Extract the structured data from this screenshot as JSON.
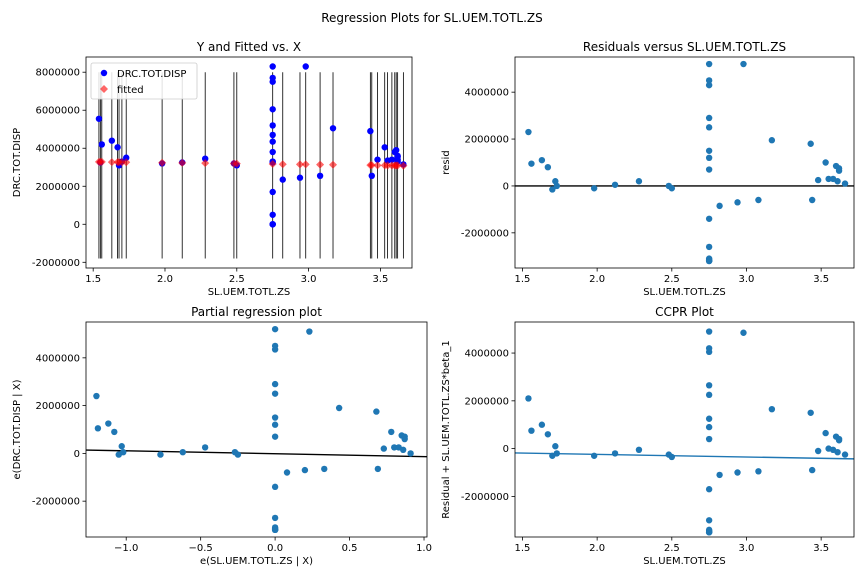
{
  "suptitle": "Regression Plots for SL.UEM.TOTL.ZS",
  "colors": {
    "observed": "#0000ff",
    "fitted": "#ff0000",
    "scatter": "#1f77b4",
    "line_black": "#000000",
    "line_blue": "#1f77b4",
    "errorbar": "#000000"
  },
  "chart_data": [
    {
      "id": "p1",
      "type": "scatter",
      "title": "Y and Fitted vs. X",
      "xlabel": "SL.UEM.TOTL.ZS",
      "ylabel": "DRC.TOT.DISP",
      "xlim": [
        1.45,
        3.72
      ],
      "ylim": [
        -2300000,
        8800000
      ],
      "xticks": [
        1.5,
        2.0,
        2.5,
        3.0,
        3.5
      ],
      "xtick_labels": [
        "1.5",
        "2.0",
        "2.5",
        "3.0",
        "3.5"
      ],
      "yticks": [
        -2000000,
        0,
        2000000,
        4000000,
        6000000,
        8000000
      ],
      "ytick_labels": [
        "-2000000",
        "0",
        "2000000",
        "4000000",
        "6000000",
        "8000000"
      ],
      "legend": {
        "location": "upper-left",
        "entries": [
          "DRC.TOT.DISP",
          "fitted"
        ]
      },
      "series": [
        {
          "name": "DRC.TOT.DISP",
          "marker": "circle",
          "x": [
            1.54,
            1.55,
            1.56,
            1.63,
            1.67,
            1.68,
            1.7,
            1.73,
            1.98,
            2.12,
            2.28,
            2.48,
            2.5,
            2.75,
            2.75,
            2.75,
            2.75,
            2.75,
            2.75,
            2.75,
            2.75,
            2.75,
            2.75,
            2.75,
            2.75,
            2.75,
            2.75,
            2.75,
            2.82,
            2.94,
            2.98,
            3.08,
            3.17,
            3.43,
            3.44,
            3.48,
            3.53,
            3.55,
            3.58,
            3.6,
            3.61,
            3.62,
            3.62,
            3.62,
            3.62,
            3.66
          ],
          "y": [
            5550000,
            3250000,
            4200000,
            4400000,
            4050000,
            3100000,
            3300000,
            3500000,
            3200000,
            3250000,
            3450000,
            3200000,
            3100000,
            8300000,
            7700000,
            7500000,
            6050000,
            5200000,
            4700000,
            4350000,
            3800000,
            3300000,
            3250000,
            1700000,
            500000,
            0,
            0,
            0,
            2350000,
            2450000,
            8300000,
            2550000,
            5050000,
            4900000,
            2550000,
            3400000,
            4050000,
            3350000,
            3400000,
            3800000,
            3900000,
            3600000,
            3550000,
            3400000,
            3300000,
            3150000
          ]
        },
        {
          "name": "fitted",
          "marker": "diamond",
          "x": [
            1.54,
            1.55,
            1.56,
            1.63,
            1.67,
            1.68,
            1.7,
            1.73,
            1.98,
            2.12,
            2.28,
            2.48,
            2.5,
            2.75,
            2.82,
            2.94,
            2.98,
            3.08,
            3.17,
            3.43,
            3.44,
            3.48,
            3.53,
            3.55,
            3.58,
            3.6,
            3.61,
            3.62,
            3.66
          ],
          "y": [
            3280000,
            3280000,
            3280000,
            3270000,
            3270000,
            3270000,
            3260000,
            3260000,
            3240000,
            3230000,
            3220000,
            3200000,
            3190000,
            3170000,
            3160000,
            3150000,
            3150000,
            3140000,
            3130000,
            3110000,
            3110000,
            3100000,
            3100000,
            3090000,
            3090000,
            3090000,
            3090000,
            3090000,
            3080000
          ]
        }
      ],
      "errorbars": {
        "x": [
          1.54,
          1.55,
          1.56,
          1.63,
          1.67,
          1.68,
          1.7,
          1.73,
          1.98,
          2.12,
          2.28,
          2.48,
          2.5,
          2.75,
          2.82,
          2.94,
          2.98,
          3.08,
          3.17,
          3.43,
          3.44,
          3.48,
          3.53,
          3.55,
          3.58,
          3.6,
          3.61,
          3.62,
          3.66
        ],
        "low": -1800000,
        "high": 8000000
      }
    },
    {
      "id": "p2",
      "type": "scatter",
      "title": "Residuals versus SL.UEM.TOTL.ZS",
      "xlabel": "SL.UEM.TOTL.ZS",
      "ylabel": "resid",
      "xlim": [
        1.45,
        3.72
      ],
      "ylim": [
        -3500000,
        5500000
      ],
      "xticks": [
        1.5,
        2.0,
        2.5,
        3.0,
        3.5
      ],
      "xtick_labels": [
        "1.5",
        "2.0",
        "2.5",
        "3.0",
        "3.5"
      ],
      "yticks": [
        -2000000,
        0,
        2000000,
        4000000
      ],
      "ytick_labels": [
        "-2000000",
        "0",
        "2000000",
        "4000000"
      ],
      "hline": 0,
      "series": [
        {
          "marker": "circle",
          "x": [
            1.54,
            1.56,
            1.63,
            1.67,
            1.7,
            1.72,
            1.73,
            1.98,
            2.12,
            2.28,
            2.48,
            2.5,
            2.75,
            2.75,
            2.75,
            2.75,
            2.75,
            2.75,
            2.75,
            2.75,
            2.75,
            2.75,
            2.75,
            2.75,
            2.75,
            2.75,
            2.75,
            2.82,
            2.94,
            2.98,
            3.08,
            3.17,
            3.43,
            3.44,
            3.48,
            3.53,
            3.55,
            3.58,
            3.6,
            3.61,
            3.62,
            3.62,
            3.66
          ],
          "y": [
            2300000,
            950000,
            1100000,
            800000,
            -150000,
            200000,
            0,
            -100000,
            50000,
            200000,
            0,
            -100000,
            5200000,
            4500000,
            4300000,
            2900000,
            2500000,
            1500000,
            1200000,
            700000,
            -1400000,
            -2600000,
            -3100000,
            -3150000,
            -3200000,
            -3200000,
            -3200000,
            -850000,
            -700000,
            5200000,
            -600000,
            1950000,
            1800000,
            -600000,
            250000,
            1000000,
            300000,
            300000,
            850000,
            200000,
            750000,
            650000,
            100000
          ]
        }
      ]
    },
    {
      "id": "p3",
      "type": "scatter",
      "title": "Partial regression plot",
      "xlabel": "e(SL.UEM.TOTL.ZS | X)",
      "ylabel": "e(DRC.TOT.DISP | X)",
      "xlim": [
        -1.27,
        1.02
      ],
      "ylim": [
        -3500000,
        5500000
      ],
      "xticks": [
        -1.0,
        -0.5,
        0.0,
        0.5,
        1.0
      ],
      "xtick_labels": [
        "−1.0",
        "−0.5",
        "0.0",
        "0.5",
        "1.0"
      ],
      "yticks": [
        -2000000,
        0,
        2000000,
        4000000
      ],
      "ytick_labels": [
        "-2000000",
        "0",
        "2000000",
        "4000000"
      ],
      "fit_line": {
        "x": [
          -1.27,
          1.02
        ],
        "y": [
          140000,
          -140000
        ]
      },
      "series": [
        {
          "marker": "circle",
          "x": [
            -1.2,
            -1.19,
            -1.12,
            -1.08,
            -1.05,
            -1.03,
            -1.02,
            -0.77,
            -0.62,
            -0.47,
            -0.27,
            -0.25,
            0.0,
            0.0,
            0.0,
            0.0,
            0.0,
            0.0,
            0.0,
            0.0,
            0.0,
            0.0,
            0.0,
            0.0,
            0.0,
            0.0,
            0.0,
            0.08,
            0.2,
            0.23,
            0.33,
            0.43,
            0.68,
            0.69,
            0.73,
            0.78,
            0.8,
            0.83,
            0.85,
            0.86,
            0.87,
            0.87,
            0.91
          ],
          "y": [
            2400000,
            1050000,
            1250000,
            900000,
            -50000,
            300000,
            50000,
            -50000,
            50000,
            250000,
            50000,
            -50000,
            5200000,
            4500000,
            4350000,
            2900000,
            2500000,
            1500000,
            1200000,
            700000,
            -1400000,
            -2700000,
            -3100000,
            -3150000,
            -3200000,
            -3200000,
            -3200000,
            -800000,
            -700000,
            5100000,
            -650000,
            1900000,
            1750000,
            -650000,
            200000,
            900000,
            250000,
            250000,
            750000,
            150000,
            700000,
            600000,
            0
          ]
        }
      ]
    },
    {
      "id": "p4",
      "type": "scatter",
      "title": "CCPR Plot",
      "xlabel": "SL.UEM.TOTL.ZS",
      "ylabel": "Residual + SL.UEM.TOTL.ZS*beta_1",
      "xlim": [
        1.45,
        3.72
      ],
      "ylim": [
        -3700000,
        5300000
      ],
      "xticks": [
        1.5,
        2.0,
        2.5,
        3.0,
        3.5
      ],
      "xtick_labels": [
        "1.5",
        "2.0",
        "2.5",
        "3.0",
        "3.5"
      ],
      "yticks": [
        -2000000,
        0,
        2000000,
        4000000
      ],
      "ytick_labels": [
        "-2000000",
        "0",
        "2000000",
        "4000000"
      ],
      "fit_line": {
        "x": [
          1.45,
          3.72
        ],
        "y": [
          -180000,
          -430000
        ]
      },
      "series": [
        {
          "marker": "circle",
          "x": [
            1.54,
            1.56,
            1.63,
            1.67,
            1.7,
            1.72,
            1.73,
            1.98,
            2.12,
            2.28,
            2.48,
            2.5,
            2.75,
            2.75,
            2.75,
            2.75,
            2.75,
            2.75,
            2.75,
            2.75,
            2.75,
            2.75,
            2.75,
            2.75,
            2.75,
            2.75,
            2.75,
            2.82,
            2.94,
            2.98,
            3.08,
            3.17,
            3.43,
            3.44,
            3.48,
            3.53,
            3.55,
            3.58,
            3.6,
            3.61,
            3.62,
            3.62,
            3.66
          ],
          "y": [
            2100000,
            750000,
            1000000,
            600000,
            -300000,
            100000,
            -200000,
            -300000,
            -200000,
            -50000,
            -250000,
            -350000,
            4900000,
            4200000,
            4050000,
            2650000,
            2250000,
            1250000,
            900000,
            400000,
            -1700000,
            -3000000,
            -3400000,
            -3450000,
            -3500000,
            -3500000,
            -3500000,
            -1100000,
            -1000000,
            4850000,
            -950000,
            1650000,
            1500000,
            -900000,
            -100000,
            650000,
            0,
            -50000,
            500000,
            -150000,
            400000,
            350000,
            -250000
          ]
        }
      ]
    }
  ]
}
